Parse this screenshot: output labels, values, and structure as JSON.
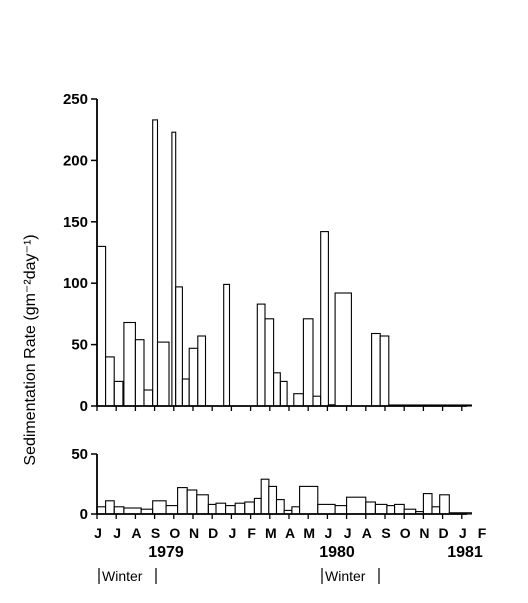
{
  "chart_data": {
    "type": "bar",
    "ylabel": "Sedimentation Rate (gm⁻²day⁻¹)",
    "x_months": [
      "J",
      "J",
      "A",
      "S",
      "O",
      "N",
      "D",
      "J",
      "F",
      "M",
      "A",
      "M",
      "J",
      "J",
      "A",
      "S",
      "O",
      "N",
      "D",
      "J",
      "F"
    ],
    "years": [
      "1979",
      "1980",
      "1981"
    ],
    "winter_label": "Winter",
    "panels": [
      {
        "name": "upper",
        "ylim": [
          0,
          250
        ],
        "yticks": [
          "0",
          "50",
          "100",
          "150",
          "200",
          "250"
        ],
        "bars": [
          {
            "x0": 0.0,
            "x1": 0.45,
            "value": 130
          },
          {
            "x0": 0.45,
            "x1": 0.9,
            "value": 40
          },
          {
            "x0": 0.9,
            "x1": 1.35,
            "value": 20
          },
          {
            "x0": 1.4,
            "x1": 2.0,
            "value": 68
          },
          {
            "x0": 2.0,
            "x1": 2.45,
            "value": 54
          },
          {
            "x0": 2.45,
            "x1": 2.9,
            "value": 13
          },
          {
            "x0": 2.9,
            "x1": 3.15,
            "value": 233
          },
          {
            "x0": 3.15,
            "x1": 3.75,
            "value": 52
          },
          {
            "x0": 3.9,
            "x1": 4.1,
            "value": 223
          },
          {
            "x0": 4.1,
            "x1": 4.45,
            "value": 97
          },
          {
            "x0": 4.45,
            "x1": 4.8,
            "value": 22
          },
          {
            "x0": 4.8,
            "x1": 5.25,
            "value": 47
          },
          {
            "x0": 5.25,
            "x1": 5.65,
            "value": 57
          },
          {
            "x0": 6.6,
            "x1": 6.9,
            "value": 99
          },
          {
            "x0": 8.35,
            "x1": 8.75,
            "value": 83
          },
          {
            "x0": 8.75,
            "x1": 9.2,
            "value": 71
          },
          {
            "x0": 9.2,
            "x1": 9.55,
            "value": 27
          },
          {
            "x0": 9.55,
            "x1": 9.9,
            "value": 20
          },
          {
            "x0": 10.25,
            "x1": 10.75,
            "value": 10
          },
          {
            "x0": 10.75,
            "x1": 11.25,
            "value": 71
          },
          {
            "x0": 11.25,
            "x1": 11.65,
            "value": 8
          },
          {
            "x0": 11.65,
            "x1": 12.05,
            "value": 142
          },
          {
            "x0": 12.05,
            "x1": 12.4,
            "value": 1
          },
          {
            "x0": 12.4,
            "x1": 13.25,
            "value": 92
          },
          {
            "x0": 14.3,
            "x1": 14.75,
            "value": 59
          },
          {
            "x0": 14.75,
            "x1": 15.2,
            "value": 57
          },
          {
            "x0": 15.2,
            "x1": 19.5,
            "value": 0.8
          }
        ]
      },
      {
        "name": "lower",
        "ylim": [
          0,
          50
        ],
        "yticks": [
          "0",
          "50"
        ],
        "bars": [
          {
            "x0": 0.0,
            "x1": 0.45,
            "value": 6
          },
          {
            "x0": 0.45,
            "x1": 0.9,
            "value": 11
          },
          {
            "x0": 0.9,
            "x1": 1.4,
            "value": 6
          },
          {
            "x0": 1.4,
            "x1": 2.3,
            "value": 5
          },
          {
            "x0": 2.3,
            "x1": 2.9,
            "value": 4
          },
          {
            "x0": 2.9,
            "x1": 3.6,
            "value": 11
          },
          {
            "x0": 3.6,
            "x1": 4.2,
            "value": 7
          },
          {
            "x0": 4.2,
            "x1": 4.7,
            "value": 22
          },
          {
            "x0": 4.7,
            "x1": 5.2,
            "value": 20
          },
          {
            "x0": 5.2,
            "x1": 5.8,
            "value": 16
          },
          {
            "x0": 5.8,
            "x1": 6.2,
            "value": 8
          },
          {
            "x0": 6.2,
            "x1": 6.7,
            "value": 9
          },
          {
            "x0": 6.7,
            "x1": 7.2,
            "value": 7
          },
          {
            "x0": 7.2,
            "x1": 7.7,
            "value": 9
          },
          {
            "x0": 7.7,
            "x1": 8.2,
            "value": 10
          },
          {
            "x0": 8.2,
            "x1": 8.55,
            "value": 13
          },
          {
            "x0": 8.55,
            "x1": 8.95,
            "value": 29
          },
          {
            "x0": 8.95,
            "x1": 9.35,
            "value": 23
          },
          {
            "x0": 9.35,
            "x1": 9.75,
            "value": 12
          },
          {
            "x0": 9.75,
            "x1": 10.15,
            "value": 3
          },
          {
            "x0": 10.15,
            "x1": 10.55,
            "value": 6
          },
          {
            "x0": 10.55,
            "x1": 11.5,
            "value": 23
          },
          {
            "x0": 11.5,
            "x1": 12.4,
            "value": 8
          },
          {
            "x0": 12.4,
            "x1": 13.0,
            "value": 7
          },
          {
            "x0": 13.0,
            "x1": 14.0,
            "value": 14
          },
          {
            "x0": 14.0,
            "x1": 14.5,
            "value": 10
          },
          {
            "x0": 14.5,
            "x1": 15.1,
            "value": 8
          },
          {
            "x0": 15.1,
            "x1": 15.5,
            "value": 7
          },
          {
            "x0": 15.5,
            "x1": 16.0,
            "value": 8
          },
          {
            "x0": 16.0,
            "x1": 16.6,
            "value": 4
          },
          {
            "x0": 16.6,
            "x1": 17.0,
            "value": 2
          },
          {
            "x0": 17.0,
            "x1": 17.45,
            "value": 17
          },
          {
            "x0": 17.45,
            "x1": 17.85,
            "value": 6
          },
          {
            "x0": 17.85,
            "x1": 18.35,
            "value": 16
          },
          {
            "x0": 18.35,
            "x1": 19.5,
            "value": 1
          }
        ]
      }
    ]
  }
}
